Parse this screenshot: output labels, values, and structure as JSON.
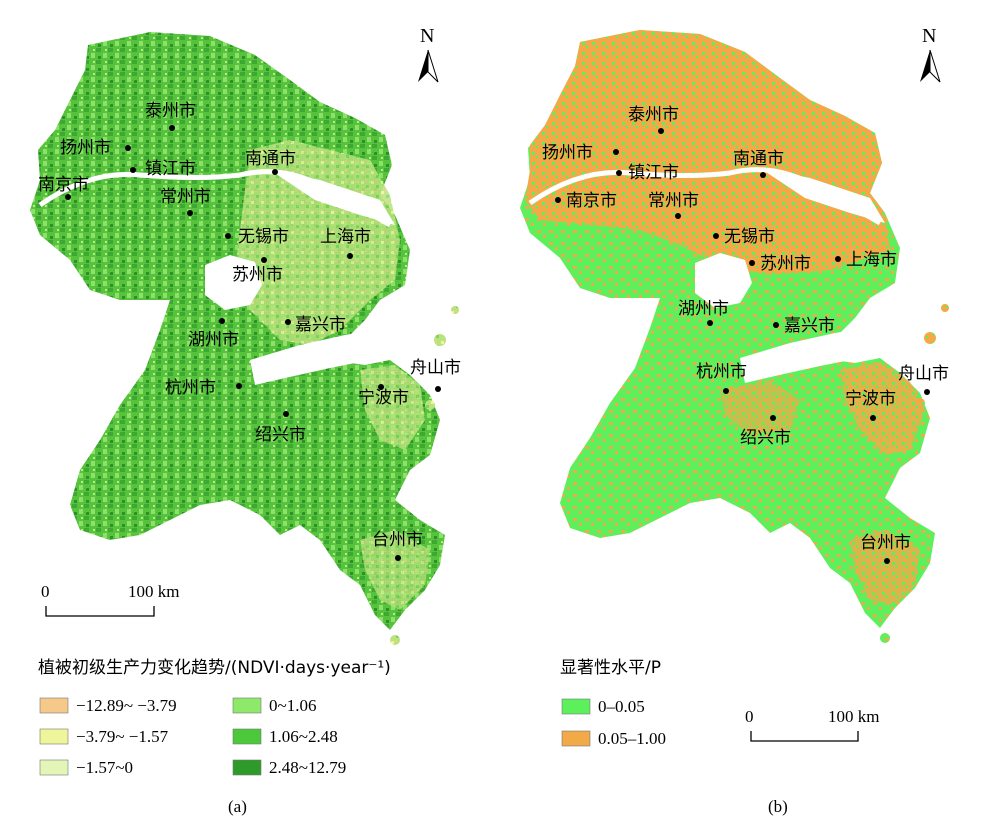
{
  "panels": [
    {
      "id": "a",
      "label": "(a)",
      "north": "N",
      "scale": {
        "start": "0",
        "end": "100 km"
      },
      "legend_title": "植被初级生产力变化趋势/(NDVI·days·year⁻¹)",
      "legend": [
        {
          "label": "−12.89~ −3.79",
          "color": "#f4c98a"
        },
        {
          "label": "−3.79~ −1.57",
          "color": "#eef59a"
        },
        {
          "label": "−1.57~0",
          "color": "#e4f5b8"
        },
        {
          "label": "0~1.06",
          "color": "#8ee86a"
        },
        {
          "label": "1.06~2.48",
          "color": "#4cc93a"
        },
        {
          "label": "2.48~12.79",
          "color": "#2e9a2a"
        }
      ],
      "cities": [
        "泰州市",
        "扬州市",
        "镇江市",
        "南京市",
        "南通市",
        "常州市",
        "无锡市",
        "上海市",
        "苏州市",
        "湖州市",
        "嘉兴市",
        "舟山市",
        "杭州市",
        "宁波市",
        "绍兴市",
        "台州市"
      ]
    },
    {
      "id": "b",
      "label": "(b)",
      "north": "N",
      "scale": {
        "start": "0",
        "end": "100 km"
      },
      "legend_title": "显著性水平/P",
      "legend": [
        {
          "label": "0–0.05",
          "color": "#5cf05c"
        },
        {
          "label": "0.05–1.00",
          "color": "#f2aa48"
        }
      ],
      "cities": [
        "泰州市",
        "扬州市",
        "镇江市",
        "南通市",
        "南京市",
        "常州市",
        "无锡市",
        "苏州市",
        "上海市",
        "湖州市",
        "嘉兴市",
        "杭州市",
        "舟山市",
        "宁波市",
        "绍兴市",
        "台州市"
      ]
    }
  ]
}
